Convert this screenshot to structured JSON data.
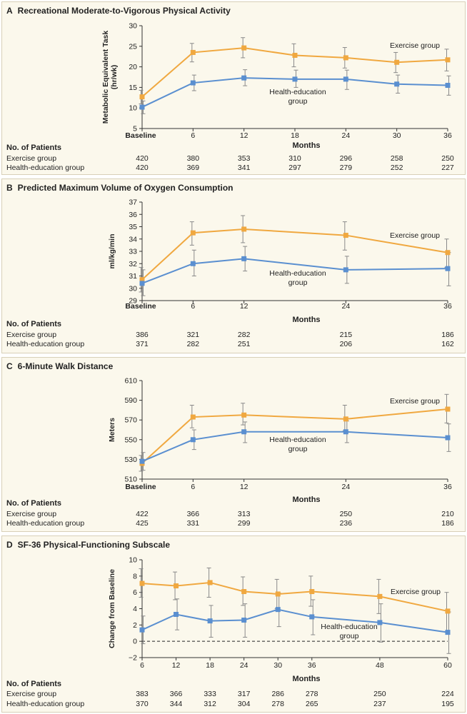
{
  "colors": {
    "exercise": "#f0a840",
    "health": "#5a8fd0",
    "error": "#8a8a8a",
    "axis": "#333333"
  },
  "labels": {
    "no_of_patients": "No. of Patients",
    "exercise_group": "Exercise group",
    "health_group": "Health-education group",
    "months": "Months",
    "baseline": "Baseline"
  },
  "chart_data": [
    {
      "type": "line",
      "letter": "A",
      "title": "Recreational Moderate-to-Vigorous Physical Activity",
      "ylabel": [
        "Metabolic Equivalent Task",
        "(hr/wk)"
      ],
      "xlabel": "Months",
      "ylim": [
        5,
        30
      ],
      "yticks": [
        5,
        10,
        15,
        20,
        25,
        30
      ],
      "categories": [
        "Baseline",
        "6",
        "12",
        "18",
        "24",
        "30",
        "36"
      ],
      "x": [
        0,
        6,
        12,
        18,
        24,
        30,
        36
      ],
      "xlim": [
        0,
        36
      ],
      "series": [
        {
          "name": "Exercise group",
          "values": [
            12.7,
            23.5,
            24.6,
            22.8,
            22.2,
            21.1,
            21.7
          ],
          "lower": [
            11.0,
            21.2,
            22.2,
            20.0,
            19.7,
            18.6,
            19.0
          ],
          "upper": [
            14.3,
            25.7,
            27.1,
            25.6,
            24.7,
            23.5,
            24.3
          ],
          "label": [
            "Exercise group"
          ]
        },
        {
          "name": "Health-education group",
          "values": [
            10.2,
            16.1,
            17.3,
            17.0,
            17.0,
            15.8,
            15.5
          ],
          "lower": [
            8.6,
            14.2,
            15.4,
            15.0,
            14.5,
            13.6,
            13.1
          ],
          "upper": [
            11.7,
            18.0,
            19.3,
            19.2,
            19.2,
            18.0,
            17.8
          ],
          "label": [
            "Health-education",
            "group"
          ]
        }
      ],
      "patients": {
        "exercise": [
          "420",
          "380",
          "353",
          "310",
          "296",
          "258",
          "250"
        ],
        "health": [
          "420",
          "369",
          "341",
          "297",
          "279",
          "252",
          "227"
        ]
      }
    },
    {
      "type": "line",
      "letter": "B",
      "title": "Predicted Maximum Volume of Oxygen Consumption",
      "ylabel": [
        "ml/kg/min"
      ],
      "xlabel": "Months",
      "ylim": [
        29,
        37
      ],
      "yticks": [
        29,
        30,
        31,
        32,
        33,
        34,
        35,
        36,
        37
      ],
      "categories": [
        "Baseline",
        "6",
        "12",
        "24",
        "36"
      ],
      "x": [
        0,
        6,
        12,
        24,
        36
      ],
      "xlim": [
        0,
        36
      ],
      "series": [
        {
          "name": "Exercise group",
          "values": [
            30.7,
            34.5,
            34.8,
            34.3,
            32.9
          ],
          "lower": [
            29.7,
            33.5,
            33.7,
            33.1,
            31.7
          ],
          "upper": [
            31.7,
            35.4,
            35.9,
            35.4,
            34.0
          ],
          "label": [
            "Exercise group"
          ]
        },
        {
          "name": "Health-education group",
          "values": [
            30.4,
            32.0,
            32.4,
            31.5,
            31.6
          ],
          "lower": [
            29.4,
            31.0,
            31.4,
            30.4,
            30.2
          ],
          "upper": [
            31.5,
            33.1,
            33.4,
            32.6,
            32.9
          ],
          "label": [
            "Health-education",
            "group"
          ]
        }
      ],
      "patients": {
        "exercise": [
          "386",
          "321",
          "282",
          "215",
          "186"
        ],
        "health": [
          "371",
          "282",
          "251",
          "206",
          "162"
        ]
      }
    },
    {
      "type": "line",
      "letter": "C",
      "title": "6-Minute Walk Distance",
      "ylabel": [
        "Meters"
      ],
      "xlabel": "Months",
      "ylim": [
        510,
        610
      ],
      "yticks": [
        510,
        530,
        550,
        570,
        590,
        610
      ],
      "categories": [
        "Baseline",
        "6",
        "12",
        "24",
        "36"
      ],
      "x": [
        0,
        6,
        12,
        24,
        36
      ],
      "xlim": [
        0,
        36
      ],
      "series": [
        {
          "name": "Exercise group",
          "values": [
            526,
            573,
            575,
            571,
            581
          ],
          "lower": [
            518,
            562,
            565,
            559,
            567
          ],
          "upper": [
            534,
            585,
            587,
            585,
            596
          ],
          "label": [
            "Exercise group"
          ]
        },
        {
          "name": "Health-education group",
          "values": [
            528,
            550,
            558,
            558,
            552
          ],
          "lower": [
            519,
            540,
            547,
            547,
            538
          ],
          "upper": [
            537,
            560,
            568,
            569,
            566
          ],
          "label": [
            "Health-education",
            "group"
          ]
        }
      ],
      "patients": {
        "exercise": [
          "422",
          "366",
          "313",
          "250",
          "210"
        ],
        "health": [
          "425",
          "331",
          "299",
          "236",
          "186"
        ]
      }
    },
    {
      "type": "line",
      "letter": "D",
      "title": "SF-36 Physical-Functioning Subscale",
      "ylabel": [
        "Change from Baseline"
      ],
      "xlabel": "Months",
      "ylim": [
        -2,
        10
      ],
      "yticks": [
        -2,
        0,
        2,
        4,
        6,
        8,
        10
      ],
      "categories": [
        "6",
        "12",
        "18",
        "24",
        "30",
        "36",
        "48",
        "60"
      ],
      "x": [
        6,
        12,
        18,
        24,
        30,
        36,
        48,
        60
      ],
      "xlim": [
        6,
        60
      ],
      "reference_line": 0,
      "series": [
        {
          "name": "Exercise group",
          "values": [
            7.1,
            6.8,
            7.2,
            6.1,
            5.8,
            6.1,
            5.5,
            3.7
          ],
          "lower": [
            5.4,
            5.1,
            5.4,
            4.4,
            4.0,
            4.3,
            3.4,
            1.2
          ],
          "upper": [
            8.9,
            8.5,
            9.0,
            7.9,
            7.6,
            8.0,
            7.6,
            6.0
          ],
          "label": [
            "Exercise group"
          ]
        },
        {
          "name": "Health-education group",
          "values": [
            1.4,
            3.3,
            2.5,
            2.6,
            3.9,
            3.0,
            2.3,
            1.1
          ],
          "lower": [
            -0.3,
            1.4,
            0.5,
            0.5,
            1.8,
            0.8,
            -0.1,
            -1.5
          ],
          "upper": [
            3.1,
            5.2,
            4.4,
            4.6,
            5.9,
            5.1,
            4.6,
            3.6
          ],
          "label": [
            "Health-education",
            "group"
          ]
        }
      ],
      "patients": {
        "exercise": [
          "383",
          "366",
          "333",
          "317",
          "286",
          "278",
          "250",
          "224"
        ],
        "health": [
          "370",
          "344",
          "312",
          "304",
          "278",
          "265",
          "237",
          "195"
        ]
      }
    }
  ]
}
